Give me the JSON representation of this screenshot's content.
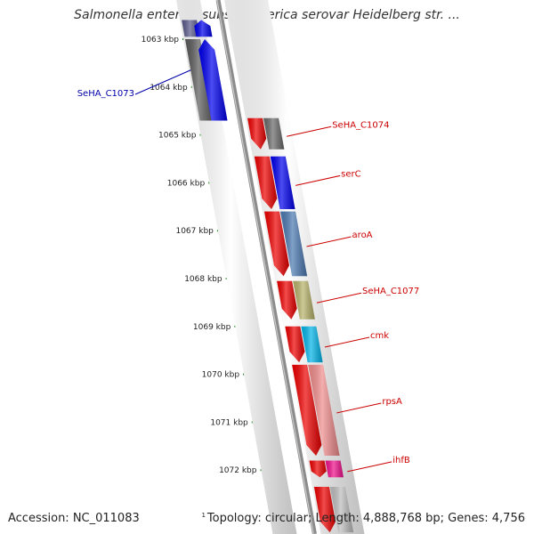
{
  "title": "Salmonella enterica subsp. enterica serovar Heidelberg str. ...",
  "footer": {
    "accession": "Accession: NC_011083",
    "stats": "Topology: circular; Length: 4,888,768 bp; Genes: 4,756",
    "small_mark": "1"
  },
  "colors": {
    "backbone": "#8c8c8c",
    "ruler": "#2f8f2f",
    "forward_label": "#0000aa",
    "reverse_label": "#cc0000"
  },
  "ruler_ticks": [
    "1063 kbp",
    "1064 kbp",
    "1065 kbp",
    "1066 kbp",
    "1067 kbp",
    "1068 kbp",
    "1069 kbp",
    "1070 kbp",
    "1071 kbp",
    "1072 kbp"
  ],
  "genes": [
    {
      "name": "SeHA_C1073",
      "strand": "forward",
      "color": "#0000ee",
      "track_color": "#5a5a5a",
      "start_kbp": 1063.0,
      "end_kbp": 1064.7
    },
    {
      "name": "SeHA_C1074",
      "strand": "reverse",
      "color": "#ee0000",
      "track_color": "#6a6a6a",
      "start_kbp": 1064.65,
      "end_kbp": 1065.3
    },
    {
      "name": "serC",
      "strand": "reverse",
      "color": "#ee0000",
      "track_color": "#0000ee",
      "start_kbp": 1065.45,
      "end_kbp": 1066.55
    },
    {
      "name": "aroA",
      "strand": "reverse",
      "color": "#ee0000",
      "track_color": "#4a78b0",
      "start_kbp": 1066.6,
      "end_kbp": 1067.95
    },
    {
      "name": "SeHA_C1077",
      "strand": "reverse",
      "color": "#ee0000",
      "track_color": "#b7b26a",
      "start_kbp": 1068.05,
      "end_kbp": 1068.85
    },
    {
      "name": "cmk",
      "strand": "reverse",
      "color": "#ee0000",
      "track_color": "#00b4e8",
      "start_kbp": 1069.0,
      "end_kbp": 1069.75
    },
    {
      "name": "rpsA",
      "strand": "reverse",
      "color": "#ee0000",
      "track_color": "#f08c8c",
      "start_kbp": 1069.8,
      "end_kbp": 1071.7
    },
    {
      "name": "ihfB",
      "strand": "reverse",
      "color": "#ee0000",
      "track_color": "#f0108c",
      "start_kbp": 1071.8,
      "end_kbp": 1072.15
    }
  ],
  "edge_genes": [
    {
      "name": "",
      "strand": "forward",
      "color": "#0000ee",
      "track_color": "#5a5a8c",
      "start_kbp": 1062.6,
      "end_kbp": 1062.95
    },
    {
      "name": "",
      "strand": "reverse",
      "color": "#ee0000",
      "track_color": "#bdbdbd",
      "start_kbp": 1072.35,
      "end_kbp": 1073.3
    }
  ]
}
